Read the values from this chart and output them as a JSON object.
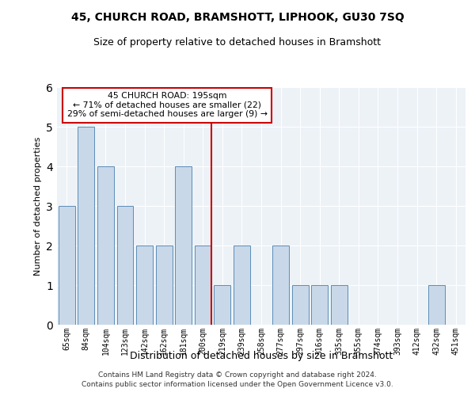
{
  "title1": "45, CHURCH ROAD, BRAMSHOTT, LIPHOOK, GU30 7SQ",
  "title2": "Size of property relative to detached houses in Bramshott",
  "xlabel": "Distribution of detached houses by size in Bramshott",
  "ylabel": "Number of detached properties",
  "categories": [
    "65sqm",
    "84sqm",
    "104sqm",
    "123sqm",
    "142sqm",
    "162sqm",
    "181sqm",
    "200sqm",
    "219sqm",
    "239sqm",
    "258sqm",
    "277sqm",
    "297sqm",
    "316sqm",
    "335sqm",
    "355sqm",
    "374sqm",
    "393sqm",
    "412sqm",
    "432sqm",
    "451sqm"
  ],
  "values": [
    3,
    5,
    4,
    3,
    2,
    2,
    4,
    2,
    1,
    2,
    0,
    2,
    1,
    1,
    1,
    0,
    0,
    0,
    0,
    1,
    0
  ],
  "bar_color": "#c8d8e8",
  "bar_edge_color": "#5b8db8",
  "highlight_index": 7,
  "highlight_line_color": "#cc0000",
  "annotation_text": "45 CHURCH ROAD: 195sqm\n← 71% of detached houses are smaller (22)\n29% of semi-detached houses are larger (9) →",
  "annotation_box_color": "#ffffff",
  "annotation_box_edge": "#cc0000",
  "ylim": [
    0,
    6
  ],
  "yticks": [
    0,
    1,
    2,
    3,
    4,
    5,
    6
  ],
  "background_color": "#edf2f7",
  "footer1": "Contains HM Land Registry data © Crown copyright and database right 2024.",
  "footer2": "Contains public sector information licensed under the Open Government Licence v3.0."
}
